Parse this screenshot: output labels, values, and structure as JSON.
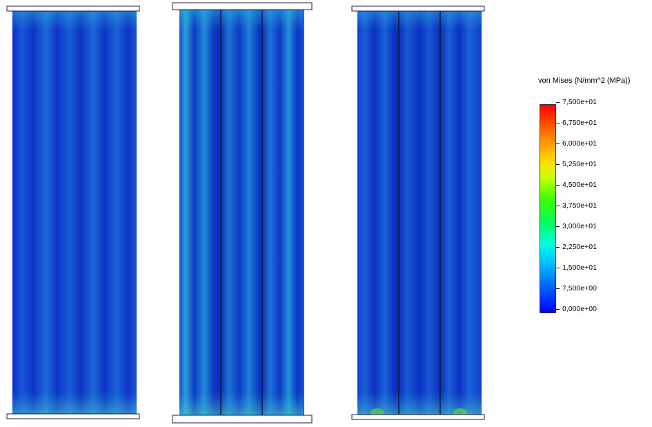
{
  "legend": {
    "title": "von Mises (N/mm^2 (MPa))",
    "labels": [
      "7,500e+01",
      "6,750e+01",
      "6,000e+01",
      "5,250e+01",
      "4,500e+01",
      "3,750e+01",
      "3,000e+01",
      "2,250e+01",
      "1,500e+01",
      "7,500e+00",
      "0,000e+00"
    ],
    "colors": [
      "#ff0000",
      "#ff8000",
      "#ffe000",
      "#c8ff00",
      "#40ff00",
      "#00ff60",
      "#00ffe0",
      "#00c8ff",
      "#0060ff",
      "#0000ff"
    ]
  },
  "panels": [
    {
      "id": "panel-1",
      "sections": 1
    },
    {
      "id": "panel-2",
      "sections": 3
    },
    {
      "id": "panel-3",
      "sections": 3
    }
  ]
}
